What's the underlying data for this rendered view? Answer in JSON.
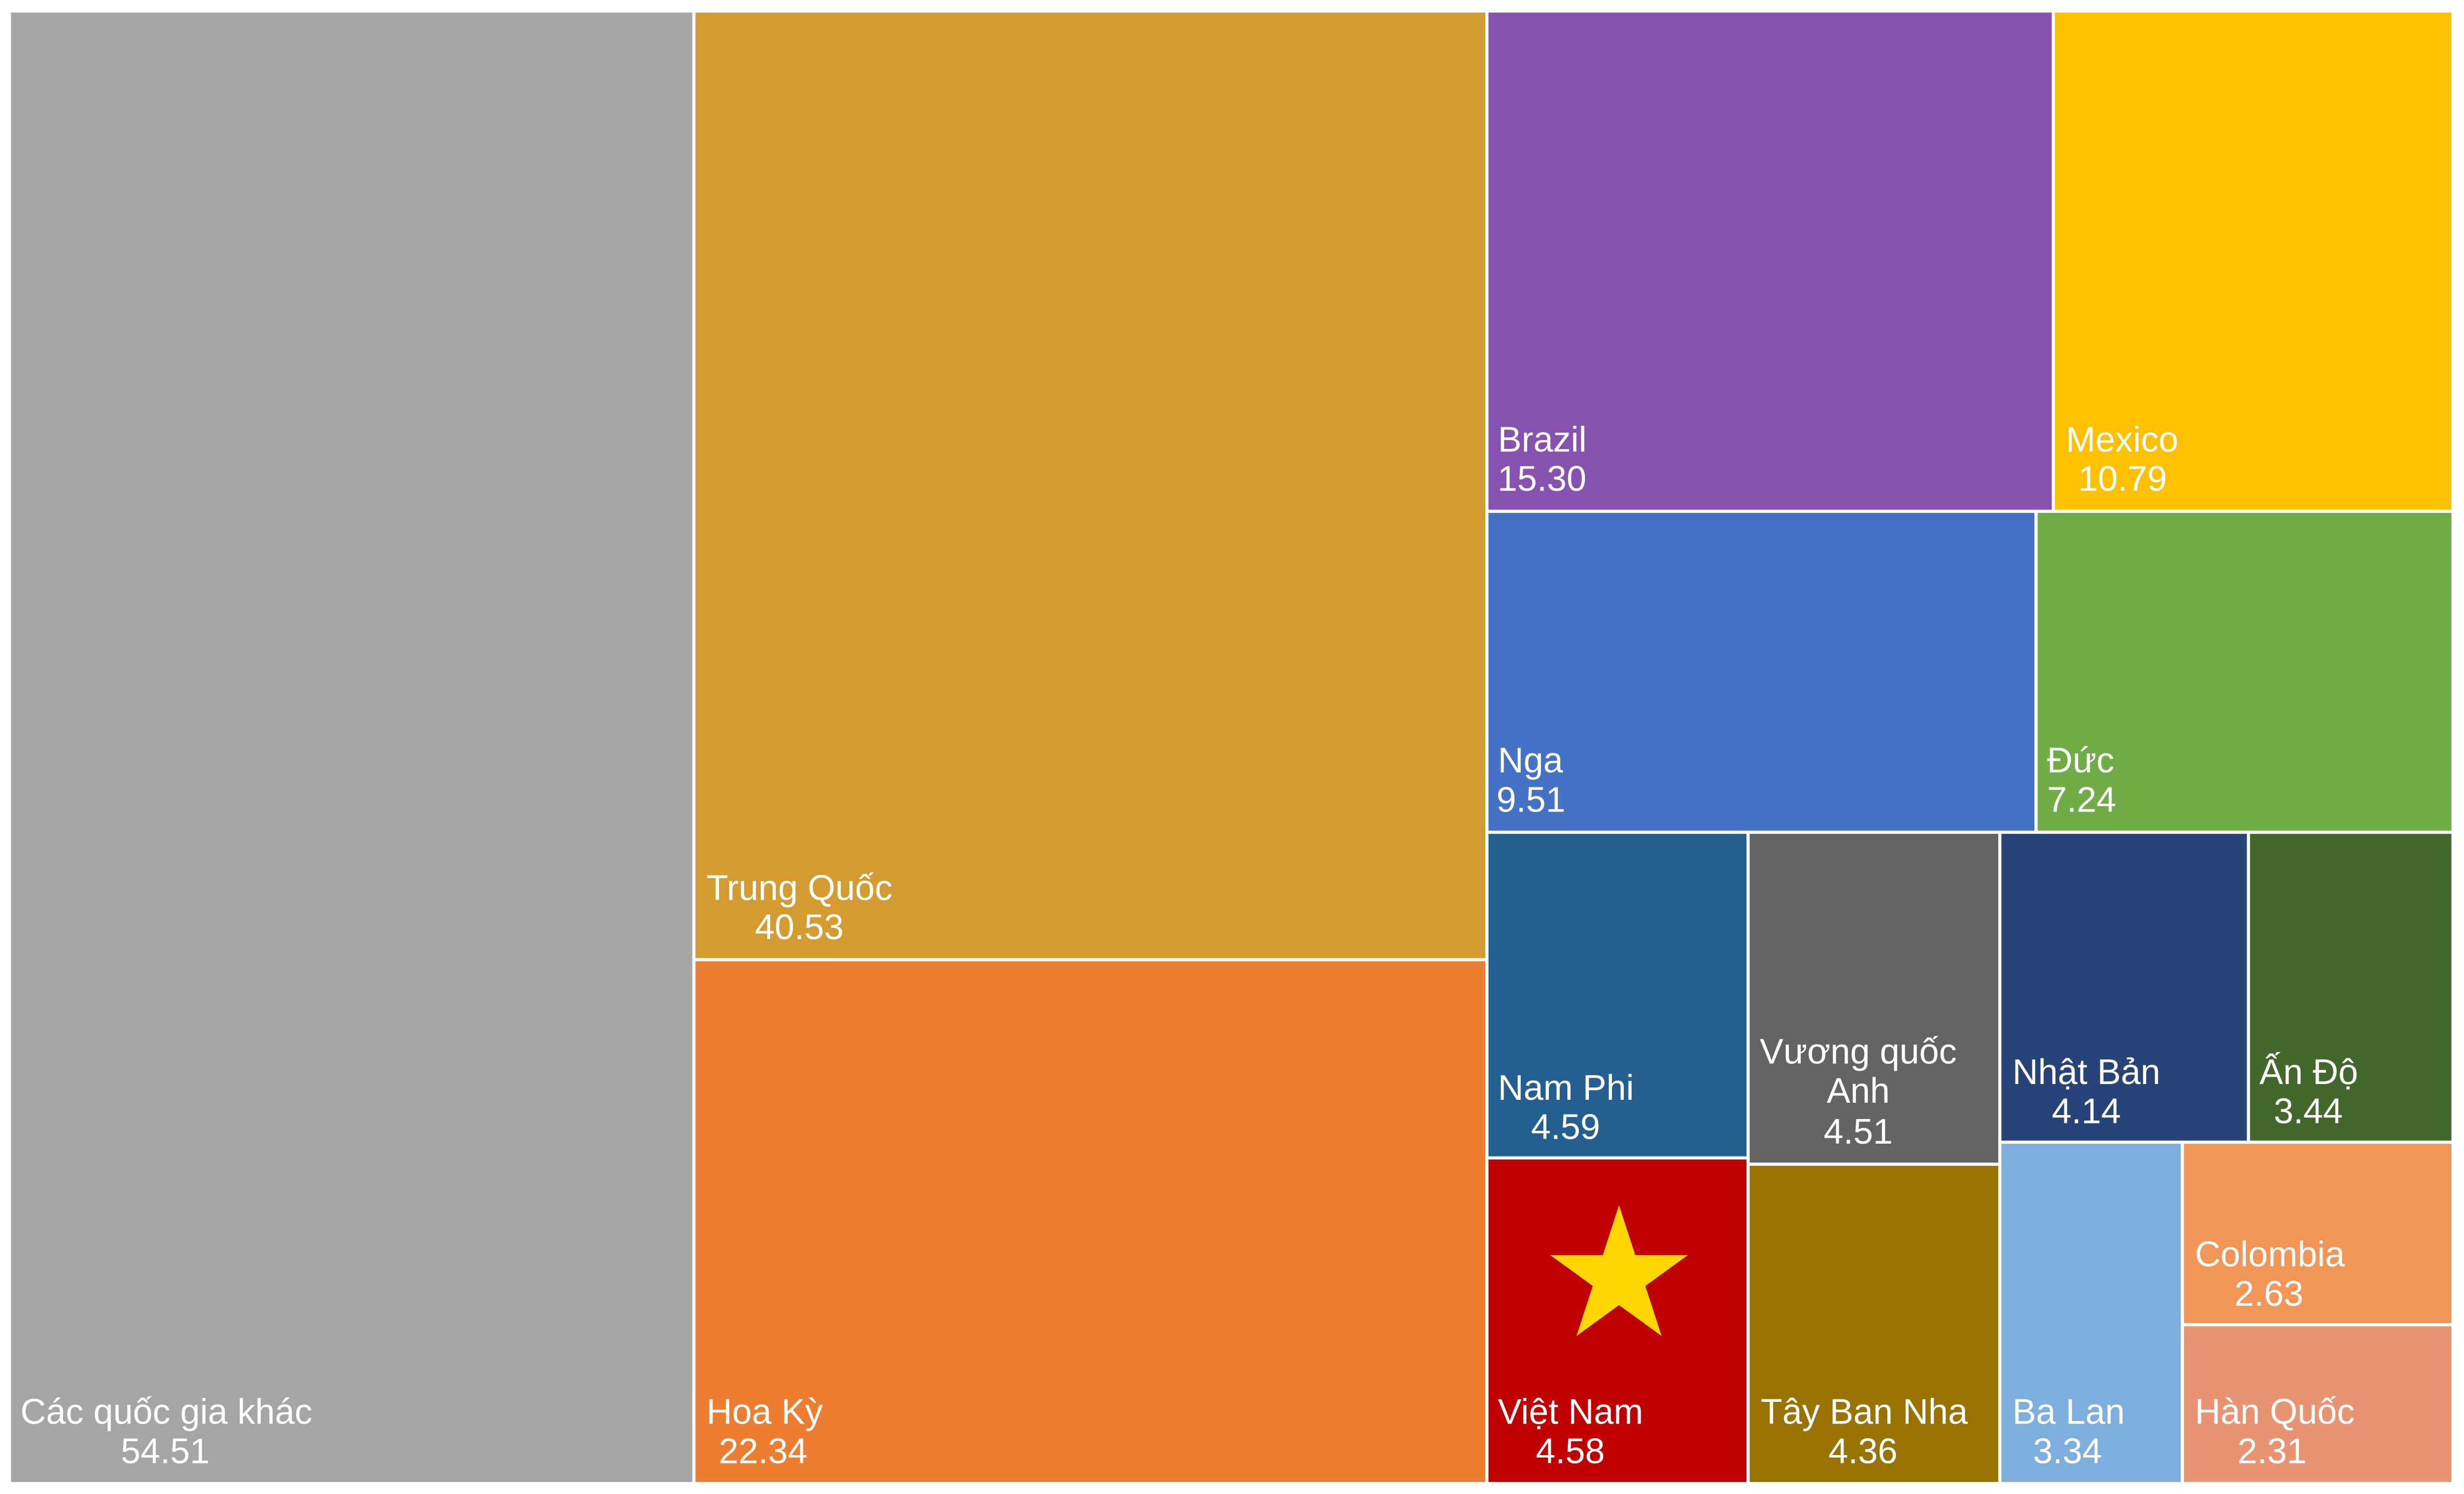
{
  "chart_data": {
    "type": "treemap",
    "items": [
      {
        "name": "Các quốc gia khác",
        "value": "54.51",
        "color": "#A5A5A5"
      },
      {
        "name": "Trung Quốc",
        "value": "40.53",
        "color": "#D49C30"
      },
      {
        "name": "Hoa Kỳ",
        "value": "22.34",
        "color": "#ED7D31"
      },
      {
        "name": "Brazil",
        "value": "15.30",
        "color": "#8751AF"
      },
      {
        "name": "Mexico",
        "value": "10.79",
        "color": "#FFC000"
      },
      {
        "name": "Nga",
        "value": "9.51",
        "color": "#4472C4"
      },
      {
        "name": "Đức",
        "value": "7.24",
        "color": "#70AD47"
      },
      {
        "name": "Nam Phi",
        "value": "4.59",
        "color": "#255E91"
      },
      {
        "name": "Vương quốc Anh",
        "value": "4.51",
        "color": "#636363"
      },
      {
        "name": "Nhật Bản",
        "value": "4.14",
        "color": "#264478"
      },
      {
        "name": "Ấn Độ",
        "value": "3.44",
        "color": "#43682B"
      },
      {
        "name": "Việt Nam",
        "value": "4.58",
        "color": "#C00000",
        "star_color": "#FFD700",
        "flag": true
      },
      {
        "name": "Tây Ban Nha",
        "value": "4.36",
        "color": "#997300"
      },
      {
        "name": "Ba Lan",
        "value": "3.34",
        "color": "#7EAEDD"
      },
      {
        "name": "Colombia",
        "value": "2.63",
        "color": "#F19656"
      },
      {
        "name": "Hàn Quốc",
        "value": "2.31",
        "color": "#E89472"
      }
    ]
  }
}
